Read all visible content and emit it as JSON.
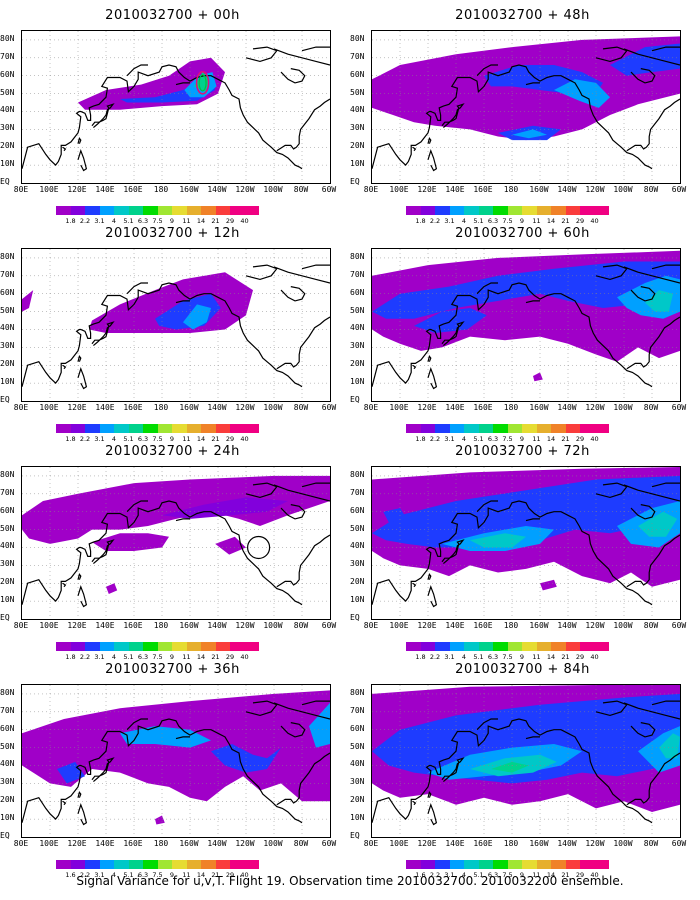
{
  "caption": "Signal Variance for u,v,T. Flight 19. Observation time 2010032700. 2010032200 ensemble.",
  "panels": [
    {
      "title": "2010032700 + 00h",
      "col": 0,
      "row": 0,
      "fill": "p00"
    },
    {
      "title": "2010032700 + 12h",
      "col": 0,
      "row": 1,
      "fill": "p12"
    },
    {
      "title": "2010032700 + 24h",
      "col": 0,
      "row": 2,
      "fill": "p24"
    },
    {
      "title": "2010032700 + 36h",
      "col": 0,
      "row": 3,
      "fill": "p36"
    },
    {
      "title": "2010032700 + 48h",
      "col": 1,
      "row": 0,
      "fill": "p48"
    },
    {
      "title": "2010032700 + 60h",
      "col": 1,
      "row": 1,
      "fill": "p60"
    },
    {
      "title": "2010032700 + 72h",
      "col": 1,
      "row": 2,
      "fill": "p72"
    },
    {
      "title": "2010032700 + 84h",
      "col": 1,
      "row": 3,
      "fill": "p84"
    }
  ],
  "lat_labels": [
    "80N",
    "70N",
    "60N",
    "50N",
    "40N",
    "30N",
    "20N",
    "10N",
    "EQ"
  ],
  "lon_labels": [
    "80E",
    "100E",
    "120E",
    "140E",
    "160E",
    "180",
    "160W",
    "140W",
    "120W",
    "100W",
    "80W",
    "60W"
  ],
  "colorbar": {
    "labels": [
      "1.8",
      "2.2",
      "3.1",
      "4",
      "5.1",
      "6.3",
      "7.5",
      "9",
      "11",
      "14",
      "21",
      "29",
      "40"
    ],
    "colors": [
      "#a000c8",
      "#8200dc",
      "#1e3cff",
      "#00a0ff",
      "#00c8c8",
      "#00d28c",
      "#00dc00",
      "#a0e632",
      "#e6dc32",
      "#e6af2d",
      "#f08228",
      "#fa3c3c",
      "#f00082"
    ]
  },
  "colorbar_panels": [
    {
      "labels": [
        "1.8",
        "2.2",
        "3.1",
        "4",
        "5.1",
        "6.3",
        "7.5",
        "9",
        "11",
        "14",
        "21",
        "29",
        "40"
      ]
    },
    {
      "labels": [
        "1.8",
        "2.2",
        "3.1",
        "4",
        "5.1",
        "6.3",
        "7.5",
        "9",
        "11",
        "14",
        "21",
        "29",
        "40"
      ]
    },
    {
      "labels": [
        "1.8",
        "2.2",
        "3.1",
        "4",
        "5.1",
        "6.3",
        "7.5",
        "9",
        "11",
        "14",
        "21",
        "29",
        "40"
      ]
    },
    {
      "labels": [
        "1.6",
        "2.2",
        "3.1",
        "4",
        "5.1",
        "6.3",
        "7.5",
        "9",
        "11",
        "14",
        "21",
        "29",
        "40"
      ]
    },
    {
      "labels": [
        "1.8",
        "2.2",
        "3.1",
        "4",
        "5.1",
        "6.3",
        "7.5",
        "9",
        "11",
        "14",
        "21",
        "29",
        "40"
      ]
    },
    {
      "labels": [
        "1.8",
        "2.2",
        "3.1",
        "4",
        "5.1",
        "6.3",
        "7.5",
        "9",
        "11",
        "14",
        "21",
        "29",
        "40"
      ]
    },
    {
      "labels": [
        "1.8",
        "2.2",
        "3.1",
        "4",
        "5.1",
        "6.3",
        "7.5",
        "9",
        "11",
        "14",
        "21",
        "29",
        "40"
      ]
    },
    {
      "labels": [
        "1.6",
        "2.2",
        "3.1",
        "4",
        "5.1",
        "6.3",
        "7.5",
        "9",
        "11",
        "14",
        "21",
        "29",
        "40"
      ]
    }
  ]
}
